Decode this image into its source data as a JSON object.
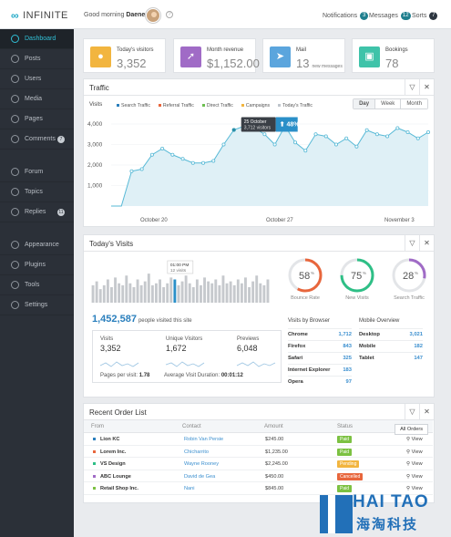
{
  "app": {
    "logo_text": "INFINITE"
  },
  "topbar": {
    "greeting": "Good morning",
    "username": "Daenerys",
    "notifications_label": "Notifications",
    "notifications_count": "3",
    "messages_label": "Messages",
    "messages_count": "12",
    "sorts_label": "Sorts",
    "sorts_count": "7"
  },
  "sidebar": {
    "items": [
      {
        "label": "Dashboard",
        "icon": "dashboard-icon"
      },
      {
        "label": "Posts",
        "icon": "posts-icon"
      },
      {
        "label": "Users",
        "icon": "users-icon"
      },
      {
        "label": "Media",
        "icon": "media-icon"
      },
      {
        "label": "Pages",
        "icon": "pages-icon"
      },
      {
        "label": "Comments",
        "icon": "comments-icon",
        "badge": "7"
      },
      {
        "label": "Forum",
        "icon": "forum-icon"
      },
      {
        "label": "Topics",
        "icon": "topics-icon"
      },
      {
        "label": "Replies",
        "icon": "replies-icon",
        "badge": "11"
      },
      {
        "label": "Appearance",
        "icon": "appearance-icon"
      },
      {
        "label": "Plugins",
        "icon": "plugins-icon"
      },
      {
        "label": "Tools",
        "icon": "tools-icon"
      },
      {
        "label": "Settings",
        "icon": "settings-icon"
      }
    ]
  },
  "stats": [
    {
      "label": "Today's visitors",
      "value": "3,352",
      "color": "#f2b53f",
      "icon": "person-icon"
    },
    {
      "label": "Month revenue",
      "value": "$1,152.00",
      "color": "#a06bc6",
      "icon": "trend-icon"
    },
    {
      "label": "Mail",
      "value": "13",
      "sub": "new messages",
      "color": "#5ba5dd",
      "icon": "mail-icon"
    },
    {
      "label": "Bookings",
      "value": "78",
      "color": "#3fc3a9",
      "icon": "bookings-icon"
    }
  ],
  "traffic": {
    "title": "Traffic",
    "visits_label": "Visits",
    "legend": [
      {
        "name": "Search Traffic",
        "color": "#2a7fbd"
      },
      {
        "name": "Referral Traffic",
        "color": "#e8663c"
      },
      {
        "name": "Direct Traffic",
        "color": "#6cbf50"
      },
      {
        "name": "Campaigns",
        "color": "#f2b53f"
      },
      {
        "name": "Today's Traffic",
        "color": "#bfc5cc"
      }
    ],
    "periods": [
      "Day",
      "Week",
      "Month"
    ],
    "tooltip_date": "25 October",
    "tooltip_visitors": "3,712 visitors",
    "tooltip_change": "48%"
  },
  "chart_data": [
    {
      "type": "area",
      "title": "Traffic",
      "y_ticks": [
        "4,000",
        "3,000",
        "2,000",
        "1,000"
      ],
      "x_ticks": [
        "October 20",
        "October 27",
        "November 3"
      ],
      "ylim": [
        0,
        4400
      ],
      "grid": true,
      "series": [
        {
          "name": "Search Traffic",
          "values": [
            0,
            0,
            1700,
            1800,
            2500,
            2800,
            2500,
            2300,
            2100,
            2100,
            2200,
            3000,
            3712,
            3900,
            3800,
            3500,
            3000,
            3900,
            3100,
            2700,
            3500,
            3400,
            3000,
            3300,
            2900,
            3700,
            3500,
            3400,
            3800,
            3600,
            3300,
            3600
          ]
        }
      ]
    },
    {
      "type": "bar",
      "title": "Today's Visits",
      "tooltip": "01:00 PM",
      "tooltip_sub": "12 visits",
      "highlight_index": 22,
      "values": [
        9,
        11,
        7,
        9,
        12,
        8,
        13,
        10,
        9,
        14,
        10,
        8,
        12,
        9,
        11,
        15,
        9,
        10,
        12,
        8,
        10,
        13,
        12,
        9,
        11,
        14,
        10,
        8,
        12,
        9,
        13,
        11,
        10,
        12,
        9,
        14,
        10,
        11,
        9,
        12,
        10,
        13,
        8,
        11,
        14,
        10,
        9,
        12
      ]
    },
    {
      "type": "pie",
      "slices": [
        {
          "label": "Bounce Rate",
          "value": 58,
          "color": "#e8663c"
        },
        {
          "label": "New Visits",
          "value": 75,
          "color": "#2ebf86"
        },
        {
          "label": "Search Traffic",
          "value": 28,
          "color": "#a06bc6"
        }
      ]
    }
  ],
  "todays_visits": {
    "title": "Today's Visits",
    "total": "1,452,587",
    "total_label": "people visited this site",
    "boxes": [
      {
        "label": "Visits",
        "value": "3,352"
      },
      {
        "label": "Unique Visitors",
        "value": "1,672"
      },
      {
        "label": "Previews",
        "value": "6,048"
      }
    ],
    "pages_per_visit_label": "Pages per visit:",
    "pages_per_visit": "1.78",
    "avg_duration_label": "Average Visit Duration:",
    "avg_duration": "00:01:12",
    "browser_title": "Visits by Browser",
    "browsers": [
      {
        "name": "Chrome",
        "value": "1,712"
      },
      {
        "name": "Firefox",
        "value": "843"
      },
      {
        "name": "Safari",
        "value": "325"
      },
      {
        "name": "Internet Explorer",
        "value": "183"
      },
      {
        "name": "Opera",
        "value": "97"
      }
    ],
    "mobile_title": "Mobile Overview",
    "mobile": [
      {
        "name": "Desktop",
        "value": "3,021"
      },
      {
        "name": "Mobile",
        "value": "182"
      },
      {
        "name": "Tablet",
        "value": "147"
      }
    ]
  },
  "orders": {
    "title": "Recent Order List",
    "all_orders": "All Orders",
    "columns": [
      "From",
      "Contact",
      "Amount",
      "Status"
    ],
    "view_label": "View",
    "rows": [
      {
        "from": "Lion KC",
        "contact": "Robin Van Persie",
        "amount": "$245.00",
        "status": "Paid",
        "status_color": "#7cc142",
        "dot": "#2a7fbd"
      },
      {
        "from": "Lorem Inc.",
        "contact": "Chicharrito",
        "amount": "$1,235.00",
        "status": "Paid",
        "status_color": "#7cc142",
        "dot": "#e8663c"
      },
      {
        "from": "VS Design",
        "contact": "Wayne Rooney",
        "amount": "$2,245.00",
        "status": "Pending",
        "status_color": "#f2b53f",
        "dot": "#2ebf86"
      },
      {
        "from": "ABC Lounge",
        "contact": "David de Gea",
        "amount": "$450.00",
        "status": "Cancelled",
        "status_color": "#e8663c",
        "dot": "#a06bc6"
      },
      {
        "from": "Retail Shop Inc.",
        "contact": "Nani",
        "amount": "$845.00",
        "status": "Paid",
        "status_color": "#7cc142",
        "dot": "#7cc142"
      }
    ]
  },
  "watermark": {
    "line1": "HAI TAO",
    "line2": "海淘科技"
  }
}
